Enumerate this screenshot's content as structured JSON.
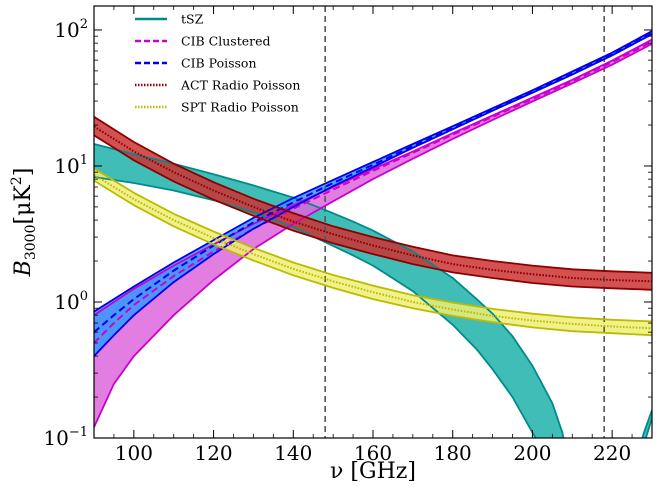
{
  "chart_data": {
    "type": "line",
    "xlabel": "ν [GHz]",
    "ylabel_main": "B",
    "ylabel_sub": "3000",
    "ylabel_unit": "[μK",
    "ylabel_sup": "2",
    "ylabel_close": "]",
    "yscale": "log",
    "xlim": [
      90,
      230
    ],
    "ylim": [
      0.1,
      150
    ],
    "xticks": [
      100,
      120,
      140,
      160,
      180,
      200,
      220
    ],
    "xtick_labels": [
      "100",
      "120",
      "140",
      "160",
      "180",
      "200",
      "220"
    ],
    "yticks": [
      0.1,
      1,
      10,
      100
    ],
    "ytick_bases": [
      "10",
      "10",
      "10",
      "10"
    ],
    "ytick_exps": [
      "−1",
      "0",
      "1",
      "2"
    ],
    "vlines": [
      148,
      218
    ],
    "legend_position": "upper left",
    "series": [
      {
        "name": "tSZ",
        "style": "solid",
        "color": "#008b8b",
        "fill": "#20b2aa",
        "x": [
          90,
          100,
          110,
          120,
          130,
          140,
          148,
          155,
          160,
          170,
          180,
          186,
          190,
          195,
          200,
          205,
          207.5,
          210,
          220,
          226,
          228,
          230
        ],
        "lower": [
          8.3,
          7.5,
          6.6,
          5.6,
          4.55,
          3.55,
          2.75,
          2.2,
          1.85,
          1.2,
          0.68,
          0.45,
          0.32,
          0.2,
          0.11,
          0.06,
          0.04,
          0.03,
          0.03,
          0.05,
          0.09,
          0.14
        ],
        "upper": [
          14.5,
          12.2,
          10.4,
          8.7,
          7.2,
          5.85,
          4.75,
          3.9,
          3.35,
          2.35,
          1.5,
          1.05,
          0.82,
          0.56,
          0.34,
          0.18,
          0.11,
          0.05,
          0.04,
          0.07,
          0.11,
          0.16
        ]
      },
      {
        "name": "CIB Clustered",
        "style": "dashed",
        "color": "#cc00cc",
        "fill": "#dd66dd",
        "x": [
          90,
          95,
          100,
          110,
          120,
          130,
          140,
          150,
          160,
          170,
          180,
          190,
          200,
          210,
          220,
          230
        ],
        "center": [
          0.5,
          0.7,
          0.95,
          1.55,
          2.35,
          3.45,
          4.85,
          6.7,
          9.2,
          12.5,
          17,
          23,
          31,
          42,
          58,
          82
        ],
        "lower": [
          0.12,
          0.25,
          0.4,
          0.8,
          1.45,
          2.45,
          3.75,
          5.5,
          8.0,
          11.3,
          15.8,
          21.8,
          29.8,
          40.5,
          55.5,
          79
        ],
        "upper": [
          0.8,
          1.0,
          1.25,
          1.85,
          2.65,
          3.75,
          5.15,
          7.0,
          9.5,
          12.8,
          17.4,
          23.5,
          31.8,
          43,
          59.5,
          85
        ]
      },
      {
        "name": "CIB Poisson",
        "style": "dashed",
        "color": "#0000ee",
        "fill": "#3399ff",
        "x": [
          90,
          95,
          100,
          110,
          120,
          130,
          140,
          150,
          160,
          170,
          180,
          190,
          200,
          210,
          220,
          230
        ],
        "center": [
          0.6,
          0.8,
          1.05,
          1.7,
          2.6,
          3.85,
          5.4,
          7.5,
          10.2,
          14,
          19,
          26,
          35,
          48,
          66,
          95
        ],
        "lower": [
          0.4,
          0.57,
          0.8,
          1.4,
          2.25,
          3.45,
          5.0,
          7.1,
          9.8,
          13.6,
          18.6,
          25.5,
          34.5,
          47,
          65,
          93
        ],
        "upper": [
          0.85,
          1.05,
          1.3,
          1.95,
          2.85,
          4.15,
          5.8,
          7.9,
          10.7,
          14.5,
          19.6,
          26.6,
          36,
          49.5,
          68,
          98
        ]
      },
      {
        "name": "ACT Radio Poisson",
        "style": "dotted",
        "color": "#8b0000",
        "fill": "#cc3333",
        "x": [
          90,
          100,
          110,
          120,
          130,
          140,
          150,
          160,
          170,
          180,
          190,
          200,
          210,
          220,
          230
        ],
        "center": [
          19.5,
          12.8,
          9.0,
          6.6,
          5.0,
          3.9,
          3.15,
          2.6,
          2.2,
          1.9,
          1.72,
          1.6,
          1.5,
          1.45,
          1.42
        ],
        "lower": [
          16.8,
          11.0,
          7.7,
          5.65,
          4.3,
          3.35,
          2.7,
          2.25,
          1.9,
          1.65,
          1.5,
          1.38,
          1.3,
          1.26,
          1.23
        ],
        "upper": [
          23.0,
          15.0,
          10.4,
          7.6,
          5.75,
          4.5,
          3.6,
          3.0,
          2.55,
          2.2,
          2.0,
          1.85,
          1.74,
          1.68,
          1.64
        ]
      },
      {
        "name": "SPT Radio Poisson",
        "style": "dotted",
        "color": "#bbbb00",
        "fill": "#eeee77",
        "x": [
          90,
          100,
          110,
          120,
          130,
          140,
          150,
          160,
          170,
          180,
          190,
          200,
          210,
          220,
          230
        ],
        "center": [
          8.6,
          5.7,
          4.0,
          2.95,
          2.25,
          1.75,
          1.42,
          1.18,
          1.0,
          0.88,
          0.79,
          0.73,
          0.69,
          0.66,
          0.64
        ],
        "lower": [
          7.8,
          5.15,
          3.6,
          2.65,
          2.02,
          1.57,
          1.27,
          1.05,
          0.9,
          0.79,
          0.71,
          0.65,
          0.61,
          0.59,
          0.57
        ],
        "upper": [
          9.6,
          6.35,
          4.45,
          3.3,
          2.5,
          1.95,
          1.58,
          1.32,
          1.12,
          0.99,
          0.89,
          0.82,
          0.77,
          0.74,
          0.72
        ]
      }
    ]
  }
}
